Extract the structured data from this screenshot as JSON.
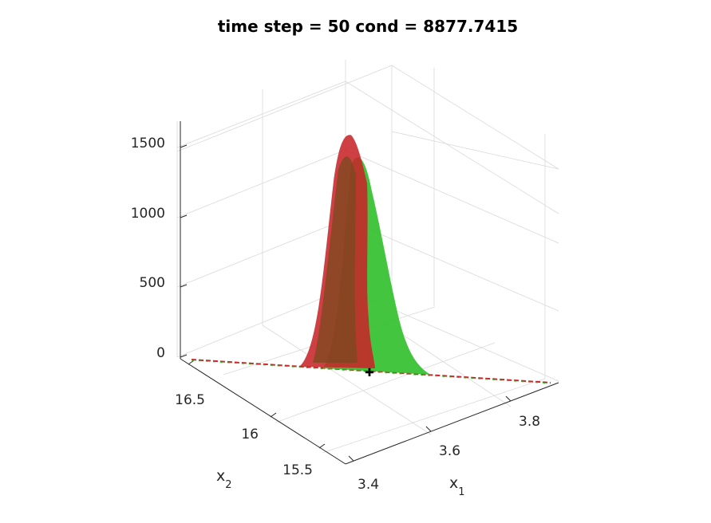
{
  "chart_data": {
    "type": "surface",
    "title": "time step = 50 cond = 8877.7415",
    "xlabel": "x",
    "xlabel_sub": "1",
    "ylabel": "x",
    "ylabel_sub": "2",
    "zlabel": "",
    "x_ticks": [
      "3.4",
      "3.6",
      "3.8"
    ],
    "y_ticks": [
      "15.5",
      "16",
      "16.5"
    ],
    "z_ticks": [
      "0",
      "500",
      "1000",
      "1500"
    ],
    "zlim": [
      0,
      1650
    ],
    "grid": true,
    "series": [
      {
        "name": "",
        "color": "#c8262a"
      },
      {
        "name": "",
        "color": "#2fbf2a"
      }
    ],
    "peak_value": 1600
  }
}
